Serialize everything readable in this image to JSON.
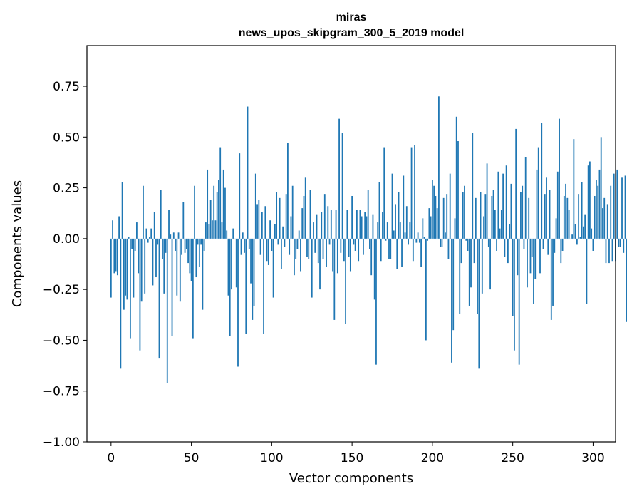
{
  "chart_data": {
    "type": "bar",
    "title": "miras",
    "subtitle": "news_upos_skipgram_300_5_2019 model",
    "xlabel": "Vector components",
    "ylabel": "Components values",
    "xlim": [
      -15,
      314
    ],
    "ylim": [
      -1.0,
      0.95
    ],
    "xticks": [
      0,
      50,
      100,
      150,
      200,
      250,
      300
    ],
    "yticks": [
      -1.0,
      -0.75,
      -0.5,
      -0.25,
      0.0,
      0.25,
      0.5,
      0.75
    ],
    "ytick_labels": [
      "−1.00",
      "−0.75",
      "−0.50",
      "−0.25",
      "0.00",
      "0.25",
      "0.50",
      "0.75"
    ],
    "xtick_labels": [
      "0",
      "50",
      "100",
      "150",
      "200",
      "250",
      "300"
    ],
    "color": "#1f77b4",
    "values": [
      -0.29,
      0.09,
      -0.17,
      -0.16,
      -0.18,
      0.11,
      -0.64,
      0.28,
      -0.35,
      -0.28,
      -0.3,
      0.01,
      -0.49,
      -0.05,
      -0.29,
      -0.06,
      0.08,
      -0.17,
      -0.55,
      -0.31,
      0.26,
      -0.27,
      0.05,
      -0.02,
      0.01,
      0.05,
      -0.23,
      0.13,
      -0.19,
      -0.03,
      -0.59,
      0.24,
      -0.1,
      -0.27,
      -0.07,
      -0.71,
      0.14,
      0.02,
      -0.48,
      0.03,
      -0.06,
      -0.28,
      0.03,
      -0.31,
      -0.08,
      0.18,
      -0.07,
      -0.05,
      -0.12,
      -0.17,
      -0.21,
      -0.49,
      0.26,
      -0.19,
      -0.03,
      -0.14,
      -0.03,
      -0.35,
      -0.06,
      0.08,
      0.34,
      0.07,
      0.19,
      0.09,
      0.26,
      0.09,
      0.23,
      0.29,
      0.45,
      0.08,
      0.34,
      0.25,
      0.04,
      -0.28,
      -0.48,
      -0.25,
      0.05,
      0.0,
      -0.24,
      -0.63,
      0.42,
      -0.08,
      0.03,
      -0.07,
      -0.47,
      0.65,
      -0.05,
      -0.22,
      -0.4,
      -0.33,
      0.32,
      0.17,
      0.19,
      -0.08,
      0.13,
      -0.47,
      0.16,
      -0.11,
      -0.13,
      0.09,
      -0.06,
      -0.29,
      0.07,
      0.23,
      -0.03,
      0.2,
      -0.15,
      0.06,
      -0.04,
      0.22,
      0.47,
      -0.08,
      0.11,
      0.26,
      -0.18,
      -0.1,
      -0.05,
      0.04,
      -0.16,
      0.15,
      0.21,
      0.3,
      -0.09,
      -0.1,
      0.24,
      -0.29,
      0.08,
      -0.07,
      0.12,
      -0.12,
      -0.25,
      0.13,
      -0.1,
      0.22,
      -0.14,
      0.16,
      -0.03,
      0.14,
      -0.16,
      -0.4,
      0.14,
      -0.17,
      0.59,
      -0.07,
      0.52,
      -0.11,
      -0.42,
      0.14,
      -0.09,
      -0.16,
      0.21,
      -0.03,
      -0.06,
      0.14,
      -0.11,
      0.14,
      0.11,
      -0.08,
      0.13,
      0.11,
      0.24,
      -0.05,
      -0.18,
      0.12,
      -0.3,
      -0.62,
      0.08,
      0.28,
      -0.11,
      0.13,
      0.45,
      -0.01,
      0.08,
      -0.1,
      -0.1,
      0.32,
      0.04,
      0.17,
      -0.15,
      0.23,
      0.08,
      -0.14,
      0.31,
      0.03,
      0.16,
      -0.03,
      0.08,
      0.45,
      -0.11,
      0.46,
      -0.02,
      0.03,
      -0.02,
      -0.14,
      0.1,
      0.01,
      -0.5,
      -0.01,
      0.15,
      0.11,
      0.29,
      0.26,
      0.21,
      0.15,
      0.7,
      -0.04,
      -0.04,
      0.2,
      0.03,
      0.22,
      -0.1,
      0.32,
      -0.61,
      -0.45,
      0.1,
      0.6,
      0.48,
      -0.37,
      -0.12,
      0.23,
      0.26,
      -0.01,
      -0.06,
      -0.33,
      -0.24,
      0.52,
      -0.12,
      0.2,
      -0.37,
      -0.64,
      0.23,
      -0.27,
      0.11,
      0.22,
      0.37,
      -0.04,
      -0.25,
      0.21,
      0.24,
      0.14,
      -0.06,
      0.33,
      0.05,
      0.14,
      0.32,
      -0.09,
      0.36,
      -0.12,
      0.07,
      0.27,
      -0.38,
      -0.55,
      0.54,
      -0.18,
      -0.62,
      0.23,
      0.26,
      -0.05,
      0.4,
      -0.24,
      0.2,
      -0.17,
      -0.09,
      -0.32,
      -0.2,
      0.34,
      0.45,
      -0.17,
      0.57,
      -0.05,
      0.22,
      0.3,
      -0.08,
      0.24,
      -0.4,
      -0.33,
      -0.07,
      0.1,
      0.33,
      0.59,
      -0.12,
      -0.06,
      0.21,
      0.27,
      0.2,
      0.14,
      0.0,
      0.02,
      0.49,
      0.07,
      -0.03,
      0.22,
      0.01,
      0.28,
      0.06,
      0.12,
      -0.32,
      0.36,
      0.38,
      0.05,
      -0.06,
      0.21,
      0.29,
      0.26,
      0.34,
      0.5,
      0.15,
      0.2,
      -0.12,
      0.17,
      -0.12,
      0.26,
      -0.11,
      0.32,
      -0.11,
      0.34,
      -0.04,
      -0.04,
      0.3,
      -0.07,
      0.31,
      -0.41
    ]
  }
}
